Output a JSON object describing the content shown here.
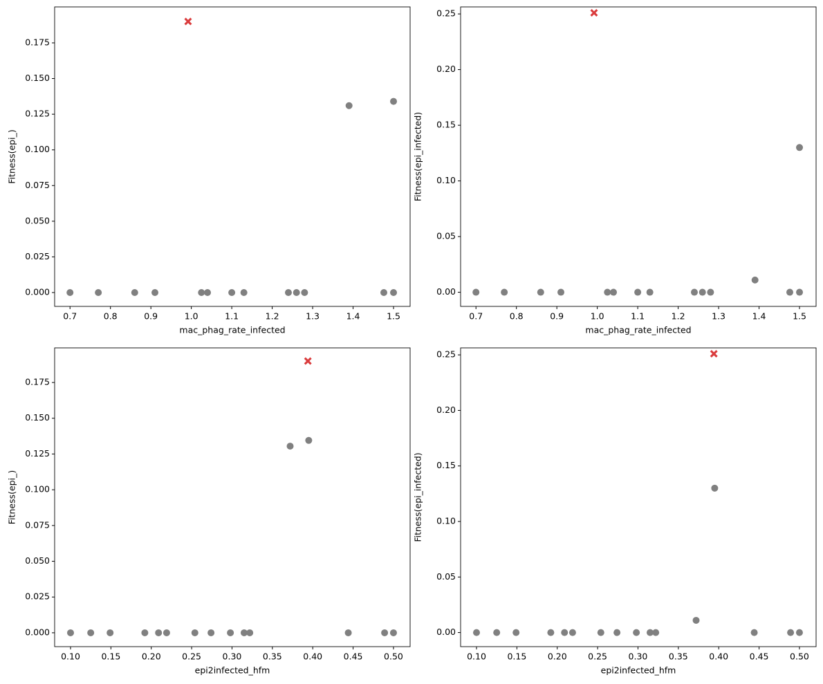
{
  "chart_data": [
    {
      "type": "scatter",
      "xlabel": "mac_phag_rate_infected",
      "ylabel": "Fitness(epi_)",
      "xlim": [
        0.662,
        1.541
      ],
      "ylim": [
        -0.0097,
        0.2002
      ],
      "xticks": [
        0.7,
        0.8,
        0.9,
        {
          "value": 1.0,
          "label": "1.0"
        },
        1.1,
        1.2,
        1.3,
        1.4,
        1.5
      ],
      "yticks": [
        {
          "value": 0,
          "label": "0.000"
        },
        0.025,
        {
          "value": 0.05,
          "label": "0.050"
        },
        {
          "value": 0.075,
          "label": "0.075"
        },
        {
          "value": 0.1,
          "label": "0.100"
        },
        0.125,
        {
          "value": 0.15,
          "label": "0.150"
        },
        0.175
      ],
      "series": [
        {
          "color": "#808080",
          "marker": "circle",
          "x": [
            0.7,
            0.77,
            0.86,
            0.91,
            1.025,
            1.04,
            1.1,
            1.13,
            1.24,
            1.26,
            1.28,
            1.39,
            1.476,
            1.5,
            1.5
          ],
          "values": [
            0,
            0,
            0,
            0,
            0,
            0,
            0,
            0,
            0,
            0,
            0,
            0.131,
            0,
            0,
            0.134
          ]
        },
        {
          "color": "#d62728",
          "marker": "x",
          "x": [
            0.992
          ],
          "values": [
            0.19
          ]
        }
      ]
    },
    {
      "type": "scatter",
      "xlabel": "mac_phag_rate_infected",
      "ylabel": "Fitness(epi_infected)",
      "xlim": [
        0.662,
        1.541
      ],
      "ylim": [
        -0.0127,
        0.2563
      ],
      "xticks": [
        0.7,
        0.8,
        0.9,
        {
          "value": 1.0,
          "label": "1.0"
        },
        1.1,
        1.2,
        1.3,
        1.4,
        1.5
      ],
      "yticks": [
        {
          "value": 0,
          "label": "0.00"
        },
        0.05,
        {
          "value": 0.1,
          "label": "0.10"
        },
        0.15,
        {
          "value": 0.2,
          "label": "0.20"
        },
        0.25
      ],
      "series": [
        {
          "color": "#808080",
          "marker": "circle",
          "x": [
            0.7,
            0.77,
            0.86,
            0.91,
            1.025,
            1.04,
            1.1,
            1.13,
            1.24,
            1.26,
            1.28,
            1.39,
            1.476,
            1.5,
            1.5
          ],
          "values": [
            0,
            0,
            0,
            0,
            0,
            0,
            0,
            0,
            0,
            0,
            0,
            0.011,
            0,
            0,
            0.13
          ]
        },
        {
          "color": "#d62728",
          "marker": "x",
          "x": [
            0.992
          ],
          "values": [
            0.251
          ]
        }
      ]
    },
    {
      "type": "scatter",
      "xlabel": "epi2infected_hfm",
      "ylabel": "Fitness(epi_)",
      "xlim": [
        0.0803,
        0.5206
      ],
      "ylim": [
        -0.0097,
        0.1992
      ],
      "xticks": [
        {
          "value": 0.1,
          "label": "0.10"
        },
        0.15,
        {
          "value": 0.2,
          "label": "0.20"
        },
        0.25,
        {
          "value": 0.3,
          "label": "0.30"
        },
        0.35,
        {
          "value": 0.4,
          "label": "0.40"
        },
        0.45,
        {
          "value": 0.5,
          "label": "0.50"
        }
      ],
      "yticks": [
        {
          "value": 0,
          "label": "0.000"
        },
        0.025,
        {
          "value": 0.05,
          "label": "0.050"
        },
        {
          "value": 0.075,
          "label": "0.075"
        },
        {
          "value": 0.1,
          "label": "0.100"
        },
        0.125,
        {
          "value": 0.15,
          "label": "0.150"
        },
        0.175
      ],
      "series": [
        {
          "color": "#808080",
          "marker": "circle",
          "x": [
            0.1,
            0.125,
            0.149,
            0.192,
            0.209,
            0.219,
            0.254,
            0.274,
            0.298,
            0.315,
            0.322,
            0.372,
            0.395,
            0.444,
            0.489,
            0.5
          ],
          "values": [
            0,
            0,
            0,
            0,
            0,
            0,
            0,
            0,
            0,
            0,
            0,
            0.1305,
            0.1345,
            0,
            0,
            0
          ]
        },
        {
          "color": "#d62728",
          "marker": "x",
          "x": [
            0.394
          ],
          "values": [
            0.19
          ]
        }
      ]
    },
    {
      "type": "scatter",
      "xlabel": "epi2infected_hfm",
      "ylabel": "Fitness(epi_infected)",
      "xlim": [
        0.0803,
        0.5206
      ],
      "ylim": [
        -0.0127,
        0.2563
      ],
      "xticks": [
        {
          "value": 0.1,
          "label": "0.10"
        },
        0.15,
        {
          "value": 0.2,
          "label": "0.20"
        },
        0.25,
        {
          "value": 0.3,
          "label": "0.30"
        },
        0.35,
        {
          "value": 0.4,
          "label": "0.40"
        },
        0.45,
        {
          "value": 0.5,
          "label": "0.50"
        }
      ],
      "yticks": [
        {
          "value": 0,
          "label": "0.00"
        },
        0.05,
        {
          "value": 0.1,
          "label": "0.10"
        },
        0.15,
        {
          "value": 0.2,
          "label": "0.20"
        },
        0.25
      ],
      "series": [
        {
          "color": "#808080",
          "marker": "circle",
          "x": [
            0.1,
            0.125,
            0.149,
            0.192,
            0.209,
            0.219,
            0.254,
            0.274,
            0.298,
            0.315,
            0.322,
            0.372,
            0.395,
            0.444,
            0.489,
            0.5
          ],
          "values": [
            0,
            0,
            0,
            0,
            0,
            0,
            0,
            0,
            0,
            0,
            0,
            0.011,
            0.13,
            0,
            0,
            0
          ]
        },
        {
          "color": "#d62728",
          "marker": "x",
          "x": [
            0.394
          ],
          "values": [
            0.251
          ]
        }
      ]
    }
  ]
}
